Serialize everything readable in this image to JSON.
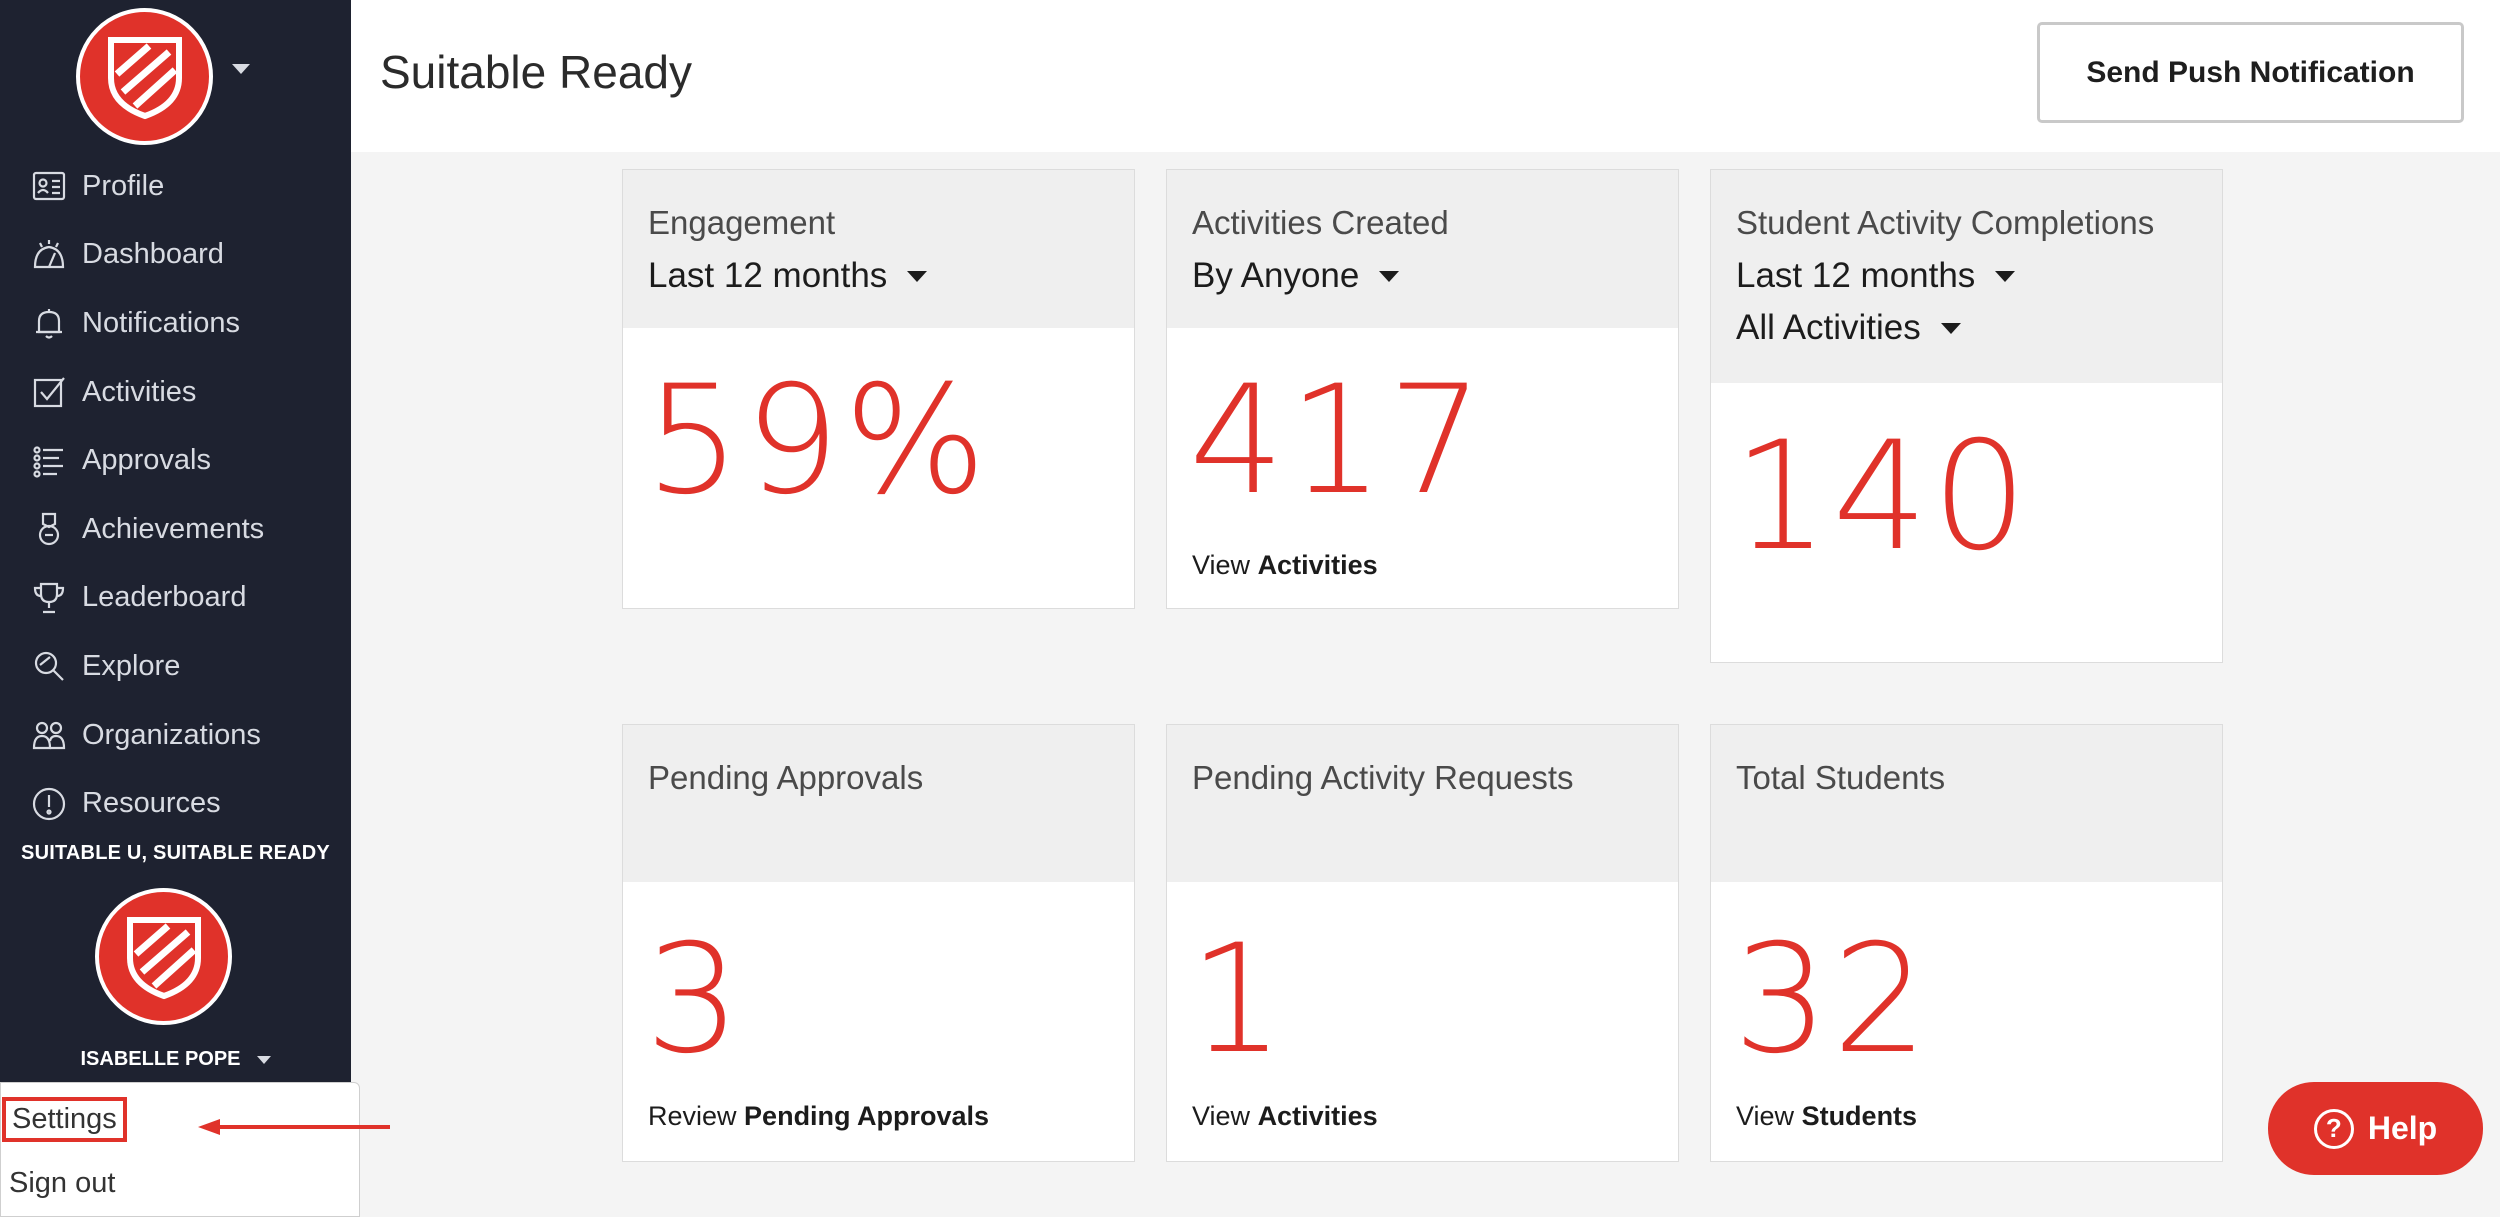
{
  "colors": {
    "brand_red": "#e0322a",
    "sidebar_bg": "#1e2230"
  },
  "header": {
    "title": "Suitable Ready",
    "push_button": "Send Push Notification"
  },
  "sidebar": {
    "items": [
      {
        "label": "Profile",
        "icon": "profile-card-icon"
      },
      {
        "label": "Dashboard",
        "icon": "dashboard-gauge-icon"
      },
      {
        "label": "Notifications",
        "icon": "bell-icon"
      },
      {
        "label": "Activities",
        "icon": "checkbox-icon"
      },
      {
        "label": "Approvals",
        "icon": "list-icon"
      },
      {
        "label": "Achievements",
        "icon": "medal-icon"
      },
      {
        "label": "Leaderboard",
        "icon": "trophy-icon"
      },
      {
        "label": "Explore",
        "icon": "explore-icon"
      },
      {
        "label": "Organizations",
        "icon": "people-icon"
      },
      {
        "label": "Resources",
        "icon": "info-icon"
      }
    ],
    "org_label": "SUITABLE U, SUITABLE READY",
    "user_name": "ISABELLE POPE"
  },
  "user_menu": {
    "settings": "Settings",
    "sign_out": "Sign out"
  },
  "cards": {
    "engagement": {
      "title": "Engagement",
      "filter": "Last 12 months",
      "value": "59%"
    },
    "activities_created": {
      "title": "Activities Created",
      "filter": "By Anyone",
      "value": "417",
      "link_prefix": "View",
      "link_bold": "Activities"
    },
    "completions": {
      "title": "Student Activity Completions",
      "filter1": "Last 12 months",
      "filter2": "All Activities",
      "value": "140"
    },
    "pending_approvals": {
      "title": "Pending Approvals",
      "value": "3",
      "link_prefix": "Review",
      "link_bold": "Pending Approvals"
    },
    "pending_requests": {
      "title": "Pending Activity Requests",
      "value": "1",
      "link_prefix": "View",
      "link_bold": "Activities"
    },
    "total_students": {
      "title": "Total Students",
      "value": "32",
      "link_prefix": "View",
      "link_bold": "Students"
    }
  },
  "help": {
    "label": "Help"
  }
}
